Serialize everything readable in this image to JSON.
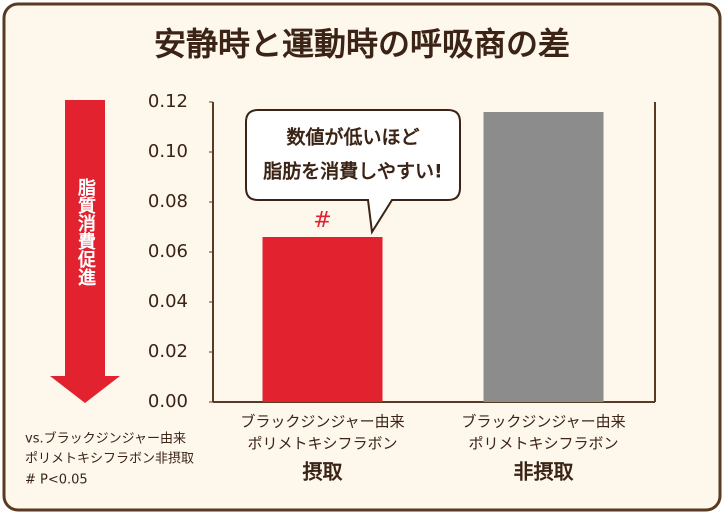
{
  "chart_data": {
    "type": "bar",
    "title": "安静時と運動時の呼吸商の差",
    "categories": [
      [
        "ブラックジンジャー由来",
        "ポリメトキシフラボン",
        "摂取"
      ],
      [
        "ブラックジンジャー由来",
        "ポリメトキシフラボン",
        "非摂取"
      ]
    ],
    "values": [
      0.066,
      0.116
    ],
    "colors": [
      "#e3222f",
      "#8c8c8c"
    ],
    "ylim": [
      0,
      0.12
    ],
    "yticks": [
      {
        "value": 0,
        "label": "0.00"
      },
      0.02,
      0.04,
      0.06,
      0.08,
      {
        "value": 0.1,
        "label": "0.10"
      },
      0.12
    ],
    "grid": false,
    "annotations": {
      "significance": "#",
      "callout": [
        "数値が低いほど",
        "脂肪を消費しやすい!"
      ],
      "arrow_label": "脂質消費促進",
      "footnote": [
        "vs.ブラックジンジャー由来",
        "ポリメトキシフラボン非摂取",
        "# P<0.05"
      ]
    }
  }
}
